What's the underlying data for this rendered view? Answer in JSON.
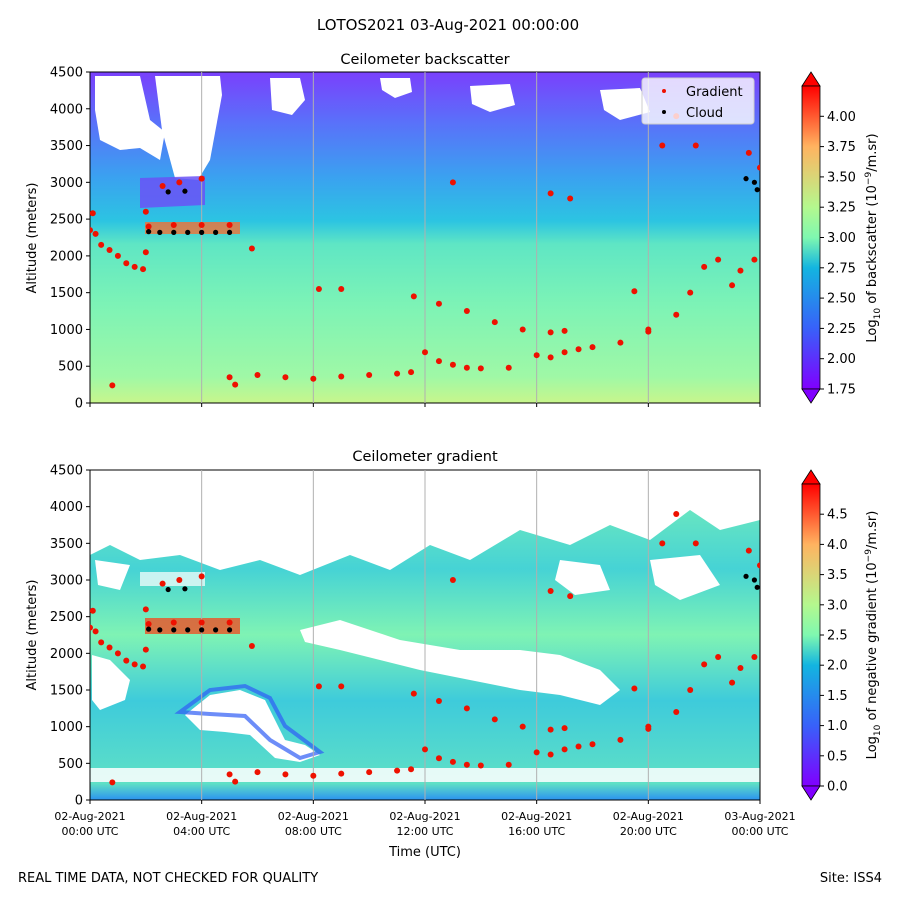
{
  "suptitle": "LOTOS2021 03-Aug-2021 00:00:00",
  "footer": {
    "quality_note": "REAL TIME DATA, NOT CHECKED FOR QUALITY",
    "site": "Site: ISS4"
  },
  "colors": {
    "gradient_marker": "#ee1100",
    "cloud_marker": "#000000",
    "no_data": "#ffffff"
  },
  "chart_data": [
    {
      "type": "heatmap",
      "title": "Ceilometer backscatter",
      "xlabel": "",
      "ylabel": "Altitude (meters)",
      "xlim": [
        0,
        24
      ],
      "ylim": [
        0,
        4500
      ],
      "yticks": [
        "0",
        "500",
        "1000",
        "1500",
        "2000",
        "2500",
        "3000",
        "3500",
        "4000",
        "4500"
      ],
      "grid": "vertical lines at x ticks",
      "colorbar": {
        "label_prefix": "Log",
        "label_sub": "10",
        "label_mid": " of backscatter (10",
        "label_sup": "−9",
        "label_end": "/m.sr)",
        "range": [
          1.75,
          4.25
        ],
        "ticks": [
          "1.75",
          "2.00",
          "2.25",
          "2.50",
          "2.75",
          "3.00",
          "3.25",
          "3.50",
          "3.75",
          "4.00"
        ],
        "colormap": "rainbow"
      },
      "legend": {
        "placement": "top-right",
        "entries": [
          {
            "label": "Gradient",
            "color": "#ee1100"
          },
          {
            "label": "Cloud",
            "color": "#000000"
          }
        ]
      },
      "series": [
        {
          "name": "Gradient",
          "points": [
            [
              0.0,
              2350
            ],
            [
              0.2,
              2300
            ],
            [
              0.4,
              2150
            ],
            [
              0.7,
              2080
            ],
            [
              1.0,
              2000
            ],
            [
              1.3,
              1900
            ],
            [
              1.6,
              1850
            ],
            [
              1.9,
              1820
            ],
            [
              2.0,
              2050
            ],
            [
              2.0,
              2600
            ],
            [
              0.1,
              2580
            ],
            [
              2.1,
              2400
            ],
            [
              3.0,
              2420
            ],
            [
              4.0,
              2420
            ],
            [
              5.0,
              2420
            ],
            [
              2.6,
              2950
            ],
            [
              3.2,
              3000
            ],
            [
              4.0,
              3050
            ],
            [
              5.8,
              2100
            ],
            [
              5.0,
              350
            ],
            [
              5.2,
              250
            ],
            [
              6.0,
              380
            ],
            [
              7.0,
              350
            ],
            [
              8.0,
              330
            ],
            [
              9.0,
              360
            ],
            [
              10.0,
              380
            ],
            [
              11.0,
              400
            ],
            [
              11.5,
              420
            ],
            [
              12.0,
              690
            ],
            [
              12.5,
              570
            ],
            [
              13.0,
              520
            ],
            [
              13.5,
              480
            ],
            [
              14.0,
              470
            ],
            [
              15.0,
              480
            ],
            [
              16.0,
              650
            ],
            [
              16.5,
              620
            ],
            [
              17.0,
              690
            ],
            [
              17.5,
              730
            ],
            [
              18.0,
              760
            ],
            [
              19.0,
              820
            ],
            [
              20.0,
              970
            ],
            [
              21.0,
              1200
            ],
            [
              21.5,
              1500
            ],
            [
              22.0,
              1850
            ],
            [
              22.5,
              1950
            ],
            [
              23.0,
              1600
            ],
            [
              23.3,
              1800
            ],
            [
              23.8,
              1950
            ],
            [
              24.0,
              3200
            ],
            [
              11.6,
              1450
            ],
            [
              12.5,
              1350
            ],
            [
              13.5,
              1250
            ],
            [
              14.5,
              1100
            ],
            [
              15.5,
              1000
            ],
            [
              16.5,
              960
            ],
            [
              17.0,
              980
            ],
            [
              8.2,
              1550
            ],
            [
              9.0,
              1550
            ],
            [
              13.0,
              3000
            ],
            [
              16.5,
              2850
            ],
            [
              17.2,
              2780
            ],
            [
              21.7,
              3500
            ],
            [
              21.0,
              3900
            ],
            [
              23.6,
              3400
            ],
            [
              20.0,
              1000
            ],
            [
              20.5,
              3500
            ],
            [
              19.5,
              1520
            ],
            [
              0.8,
              240
            ]
          ]
        },
        {
          "name": "Cloud",
          "points": [
            [
              2.1,
              2330
            ],
            [
              2.5,
              2320
            ],
            [
              3.0,
              2320
            ],
            [
              3.5,
              2320
            ],
            [
              4.0,
              2320
            ],
            [
              4.5,
              2320
            ],
            [
              5.0,
              2320
            ],
            [
              2.8,
              2870
            ],
            [
              3.4,
              2880
            ],
            [
              23.5,
              3050
            ],
            [
              23.8,
              3000
            ],
            [
              23.9,
              2900
            ]
          ]
        }
      ]
    },
    {
      "type": "heatmap",
      "title": "Ceilometer gradient",
      "xlabel": "Time (UTC)",
      "ylabel": "Altitude (meters)",
      "xlim": [
        0,
        24
      ],
      "ylim": [
        0,
        4500
      ],
      "xticks": [
        {
          "l1": "02-Aug-2021",
          "l2": "00:00 UTC"
        },
        {
          "l1": "02-Aug-2021",
          "l2": "04:00 UTC"
        },
        {
          "l1": "02-Aug-2021",
          "l2": "08:00 UTC"
        },
        {
          "l1": "02-Aug-2021",
          "l2": "12:00 UTC"
        },
        {
          "l1": "02-Aug-2021",
          "l2": "16:00 UTC"
        },
        {
          "l1": "02-Aug-2021",
          "l2": "20:00 UTC"
        },
        {
          "l1": "03-Aug-2021",
          "l2": "00:00 UTC"
        }
      ],
      "yticks": [
        "0",
        "500",
        "1000",
        "1500",
        "2000",
        "2500",
        "3000",
        "3500",
        "4000",
        "4500"
      ],
      "grid": "vertical lines at x ticks",
      "colorbar": {
        "label_prefix": "Log",
        "label_sub": "10",
        "label_mid": " of negative gradient (10",
        "label_sup": "−9",
        "label_end": "/m.sr)",
        "range": [
          0.0,
          5.0
        ],
        "ticks": [
          "0.0",
          "0.5",
          "1.0",
          "1.5",
          "2.0",
          "2.5",
          "3.0",
          "3.5",
          "4.0",
          "4.5"
        ],
        "colormap": "rainbow"
      },
      "series": [
        {
          "name": "Gradient",
          "points": [
            [
              0.0,
              2350
            ],
            [
              0.2,
              2300
            ],
            [
              0.4,
              2150
            ],
            [
              0.7,
              2080
            ],
            [
              1.0,
              2000
            ],
            [
              1.3,
              1900
            ],
            [
              1.6,
              1850
            ],
            [
              1.9,
              1820
            ],
            [
              2.0,
              2050
            ],
            [
              2.0,
              2600
            ],
            [
              0.1,
              2580
            ],
            [
              2.1,
              2400
            ],
            [
              3.0,
              2420
            ],
            [
              4.0,
              2420
            ],
            [
              5.0,
              2420
            ],
            [
              2.6,
              2950
            ],
            [
              3.2,
              3000
            ],
            [
              4.0,
              3050
            ],
            [
              5.8,
              2100
            ],
            [
              5.0,
              350
            ],
            [
              5.2,
              250
            ],
            [
              6.0,
              380
            ],
            [
              7.0,
              350
            ],
            [
              8.0,
              330
            ],
            [
              9.0,
              360
            ],
            [
              10.0,
              380
            ],
            [
              11.0,
              400
            ],
            [
              11.5,
              420
            ],
            [
              12.0,
              690
            ],
            [
              12.5,
              570
            ],
            [
              13.0,
              520
            ],
            [
              13.5,
              480
            ],
            [
              14.0,
              470
            ],
            [
              15.0,
              480
            ],
            [
              16.0,
              650
            ],
            [
              16.5,
              620
            ],
            [
              17.0,
              690
            ],
            [
              17.5,
              730
            ],
            [
              18.0,
              760
            ],
            [
              19.0,
              820
            ],
            [
              20.0,
              970
            ],
            [
              21.0,
              1200
            ],
            [
              21.5,
              1500
            ],
            [
              22.0,
              1850
            ],
            [
              22.5,
              1950
            ],
            [
              23.0,
              1600
            ],
            [
              23.3,
              1800
            ],
            [
              23.8,
              1950
            ],
            [
              24.0,
              3200
            ],
            [
              11.6,
              1450
            ],
            [
              12.5,
              1350
            ],
            [
              13.5,
              1250
            ],
            [
              14.5,
              1100
            ],
            [
              15.5,
              1000
            ],
            [
              16.5,
              960
            ],
            [
              17.0,
              980
            ],
            [
              8.2,
              1550
            ],
            [
              9.0,
              1550
            ],
            [
              13.0,
              3000
            ],
            [
              16.5,
              2850
            ],
            [
              17.2,
              2780
            ],
            [
              21.7,
              3500
            ],
            [
              21.0,
              3900
            ],
            [
              23.6,
              3400
            ],
            [
              20.0,
              1000
            ],
            [
              20.5,
              3500
            ],
            [
              19.5,
              1520
            ],
            [
              0.8,
              240
            ]
          ]
        },
        {
          "name": "Cloud",
          "points": [
            [
              2.1,
              2330
            ],
            [
              2.5,
              2320
            ],
            [
              3.0,
              2320
            ],
            [
              3.5,
              2320
            ],
            [
              4.0,
              2320
            ],
            [
              4.5,
              2320
            ],
            [
              5.0,
              2320
            ],
            [
              2.8,
              2870
            ],
            [
              3.4,
              2880
            ],
            [
              23.5,
              3050
            ],
            [
              23.8,
              3000
            ],
            [
              23.9,
              2900
            ]
          ]
        }
      ]
    }
  ]
}
